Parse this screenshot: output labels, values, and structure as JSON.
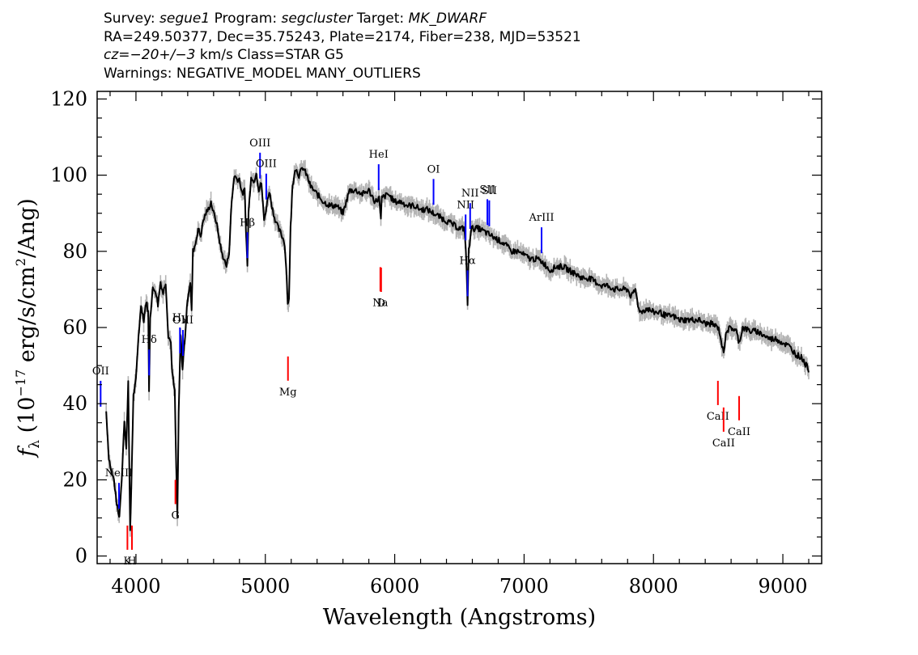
{
  "header": {
    "line1": {
      "survey_label": "Survey:",
      "survey": "segue1",
      "program_label": "Program:",
      "program": "segcluster",
      "target_label": "Target:",
      "target": "MK_DWARF"
    },
    "line2": "RA=249.50377, Dec=35.75243, Plate=2174, Fiber=238, MJD=53521",
    "line3": {
      "cz": "cz=−20+/−3",
      "rest": " km/s Class=STAR G5"
    },
    "line4": "Warnings: NEGATIVE_MODEL MANY_OUTLIERS"
  },
  "chart_data": {
    "type": "line",
    "xlabel": "Wavelength (Angstroms)",
    "ylabel_parts": {
      "f": "f",
      "sub": "λ",
      "pre": " (10",
      "exp1": "−17",
      "mid": " erg/s/cm",
      "exp2": "2",
      "post": "/Ang)"
    },
    "xlim": [
      3700,
      9300
    ],
    "ylim": [
      -2,
      122
    ],
    "xticks": [
      4000,
      5000,
      6000,
      7000,
      8000,
      9000
    ],
    "yticks": [
      0,
      20,
      40,
      60,
      80,
      100,
      120
    ],
    "x_minor_step": 200,
    "y_minor_step": 5,
    "colors": {
      "spectrum": "#000000",
      "error": "#b4b4b4",
      "emission": "#0000ff",
      "absorption": "#ff0000"
    },
    "series": [
      {
        "points": [
          [
            3770,
            38
          ],
          [
            3790,
            26
          ],
          [
            3810,
            22
          ],
          [
            3830,
            20
          ],
          [
            3850,
            14
          ],
          [
            3870,
            10
          ],
          [
            3890,
            20
          ],
          [
            3910,
            36
          ],
          [
            3925,
            28
          ],
          [
            3940,
            46
          ],
          [
            3955,
            6
          ],
          [
            3965,
            20
          ],
          [
            3980,
            42
          ],
          [
            4000,
            46
          ],
          [
            4020,
            58
          ],
          [
            4040,
            66
          ],
          [
            4060,
            62
          ],
          [
            4080,
            67
          ],
          [
            4095,
            64
          ],
          [
            4101,
            43
          ],
          [
            4110,
            63
          ],
          [
            4130,
            70
          ],
          [
            4150,
            70
          ],
          [
            4170,
            66
          ],
          [
            4190,
            72
          ],
          [
            4210,
            69
          ],
          [
            4230,
            72
          ],
          [
            4250,
            58
          ],
          [
            4270,
            56
          ],
          [
            4280,
            48
          ],
          [
            4300,
            43
          ],
          [
            4310,
            25
          ],
          [
            4320,
            10
          ],
          [
            4330,
            37
          ],
          [
            4345,
            58
          ],
          [
            4360,
            49
          ],
          [
            4380,
            58
          ],
          [
            4400,
            68
          ],
          [
            4420,
            72
          ],
          [
            4430,
            64
          ],
          [
            4440,
            80
          ],
          [
            4460,
            82
          ],
          [
            4480,
            86
          ],
          [
            4500,
            84
          ],
          [
            4520,
            88
          ],
          [
            4540,
            90
          ],
          [
            4560,
            91
          ],
          [
            4580,
            93
          ],
          [
            4600,
            90
          ],
          [
            4620,
            88
          ],
          [
            4640,
            84
          ],
          [
            4660,
            80
          ],
          [
            4680,
            78
          ],
          [
            4700,
            76
          ],
          [
            4720,
            80
          ],
          [
            4740,
            93
          ],
          [
            4760,
            100
          ],
          [
            4780,
            99
          ],
          [
            4800,
            99
          ],
          [
            4820,
            95
          ],
          [
            4840,
            96
          ],
          [
            4850,
            86
          ],
          [
            4861,
            76
          ],
          [
            4870,
            90
          ],
          [
            4890,
            100
          ],
          [
            4910,
            98
          ],
          [
            4930,
            101
          ],
          [
            4950,
            96
          ],
          [
            4970,
            98
          ],
          [
            4990,
            88
          ],
          [
            5010,
            92
          ],
          [
            5030,
            96
          ],
          [
            5050,
            92
          ],
          [
            5070,
            89
          ],
          [
            5100,
            86
          ],
          [
            5130,
            84
          ],
          [
            5150,
            82
          ],
          [
            5167,
            72
          ],
          [
            5173,
            66
          ],
          [
            5183,
            68
          ],
          [
            5195,
            86
          ],
          [
            5210,
            97
          ],
          [
            5230,
            102
          ],
          [
            5260,
            100
          ],
          [
            5290,
            102
          ],
          [
            5320,
            100
          ],
          [
            5350,
            97
          ],
          [
            5400,
            95
          ],
          [
            5450,
            93
          ],
          [
            5500,
            92
          ],
          [
            5550,
            92
          ],
          [
            5600,
            90
          ],
          [
            5650,
            96
          ],
          [
            5700,
            96
          ],
          [
            5750,
            95
          ],
          [
            5800,
            96
          ],
          [
            5850,
            93
          ],
          [
            5880,
            94
          ],
          [
            5893,
            88
          ],
          [
            5900,
            94
          ],
          [
            5950,
            95
          ],
          [
            6000,
            93
          ],
          [
            6050,
            93
          ],
          [
            6100,
            92
          ],
          [
            6150,
            92
          ],
          [
            6200,
            91
          ],
          [
            6250,
            91
          ],
          [
            6300,
            90
          ],
          [
            6350,
            89
          ],
          [
            6400,
            88
          ],
          [
            6450,
            87
          ],
          [
            6500,
            86
          ],
          [
            6540,
            86
          ],
          [
            6555,
            76
          ],
          [
            6563,
            66
          ],
          [
            6572,
            80
          ],
          [
            6590,
            86
          ],
          [
            6650,
            86
          ],
          [
            6700,
            85
          ],
          [
            6750,
            84
          ],
          [
            6800,
            83
          ],
          [
            6850,
            82
          ],
          [
            6900,
            80
          ],
          [
            6950,
            80
          ],
          [
            7000,
            79
          ],
          [
            7050,
            78
          ],
          [
            7100,
            78
          ],
          [
            7150,
            77
          ],
          [
            7200,
            75
          ],
          [
            7250,
            76
          ],
          [
            7300,
            76
          ],
          [
            7350,
            75
          ],
          [
            7400,
            74
          ],
          [
            7450,
            73
          ],
          [
            7500,
            73
          ],
          [
            7550,
            72
          ],
          [
            7600,
            71
          ],
          [
            7650,
            71
          ],
          [
            7700,
            70
          ],
          [
            7750,
            70
          ],
          [
            7800,
            70
          ],
          [
            7830,
            68
          ],
          [
            7860,
            70
          ],
          [
            7880,
            66
          ],
          [
            7900,
            64
          ],
          [
            7950,
            65
          ],
          [
            8000,
            64
          ],
          [
            8050,
            64
          ],
          [
            8100,
            63
          ],
          [
            8150,
            63
          ],
          [
            8200,
            62
          ],
          [
            8250,
            62
          ],
          [
            8300,
            62
          ],
          [
            8350,
            62
          ],
          [
            8400,
            61
          ],
          [
            8450,
            61
          ],
          [
            8498,
            60
          ],
          [
            8510,
            59
          ],
          [
            8542,
            53
          ],
          [
            8560,
            59
          ],
          [
            8600,
            60
          ],
          [
            8640,
            59
          ],
          [
            8662,
            56
          ],
          [
            8690,
            60
          ],
          [
            8750,
            59
          ],
          [
            8800,
            59
          ],
          [
            8850,
            58
          ],
          [
            8900,
            57
          ],
          [
            8950,
            57
          ],
          [
            9000,
            56
          ],
          [
            9050,
            55
          ],
          [
            9100,
            53
          ],
          [
            9150,
            52
          ],
          [
            9180,
            50
          ],
          [
            9200,
            49
          ]
        ]
      }
    ],
    "emission_lines": [
      {
        "label": "OII",
        "x": 3727
      },
      {
        "label": "NeIII",
        "x": 3869
      },
      {
        "label": "Hδ",
        "x": 4102
      },
      {
        "label": "Hγ",
        "x": 4340
      },
      {
        "label": "OIII",
        "x": 4363
      },
      {
        "label": "Hβ",
        "x": 4861
      },
      {
        "label": "OIII",
        "x": 4959
      },
      {
        "label": "OIII",
        "x": 5007
      },
      {
        "label": "HeI",
        "x": 5876
      },
      {
        "label": "OI",
        "x": 6300
      },
      {
        "label": "NII",
        "x": 6548
      },
      {
        "label": "Hα",
        "x": 6563
      },
      {
        "label": "NII",
        "x": 6583
      },
      {
        "label": "SII",
        "x": 6716
      },
      {
        "label": "SII",
        "x": 6731
      },
      {
        "label": "ArIII",
        "x": 7135
      }
    ],
    "absorption_lines": [
      {
        "label": "K",
        "x": 3934
      },
      {
        "label": "H",
        "x": 3969
      },
      {
        "label": "G",
        "x": 4305
      },
      {
        "label": "Mg",
        "x": 5175
      },
      {
        "label": "Na",
        "x": 5889
      },
      {
        "label": "D",
        "x": 5895
      },
      {
        "label": "CaII",
        "x": 8498
      },
      {
        "label": "CaII",
        "x": 8542
      },
      {
        "label": "CaII",
        "x": 8662
      }
    ]
  }
}
